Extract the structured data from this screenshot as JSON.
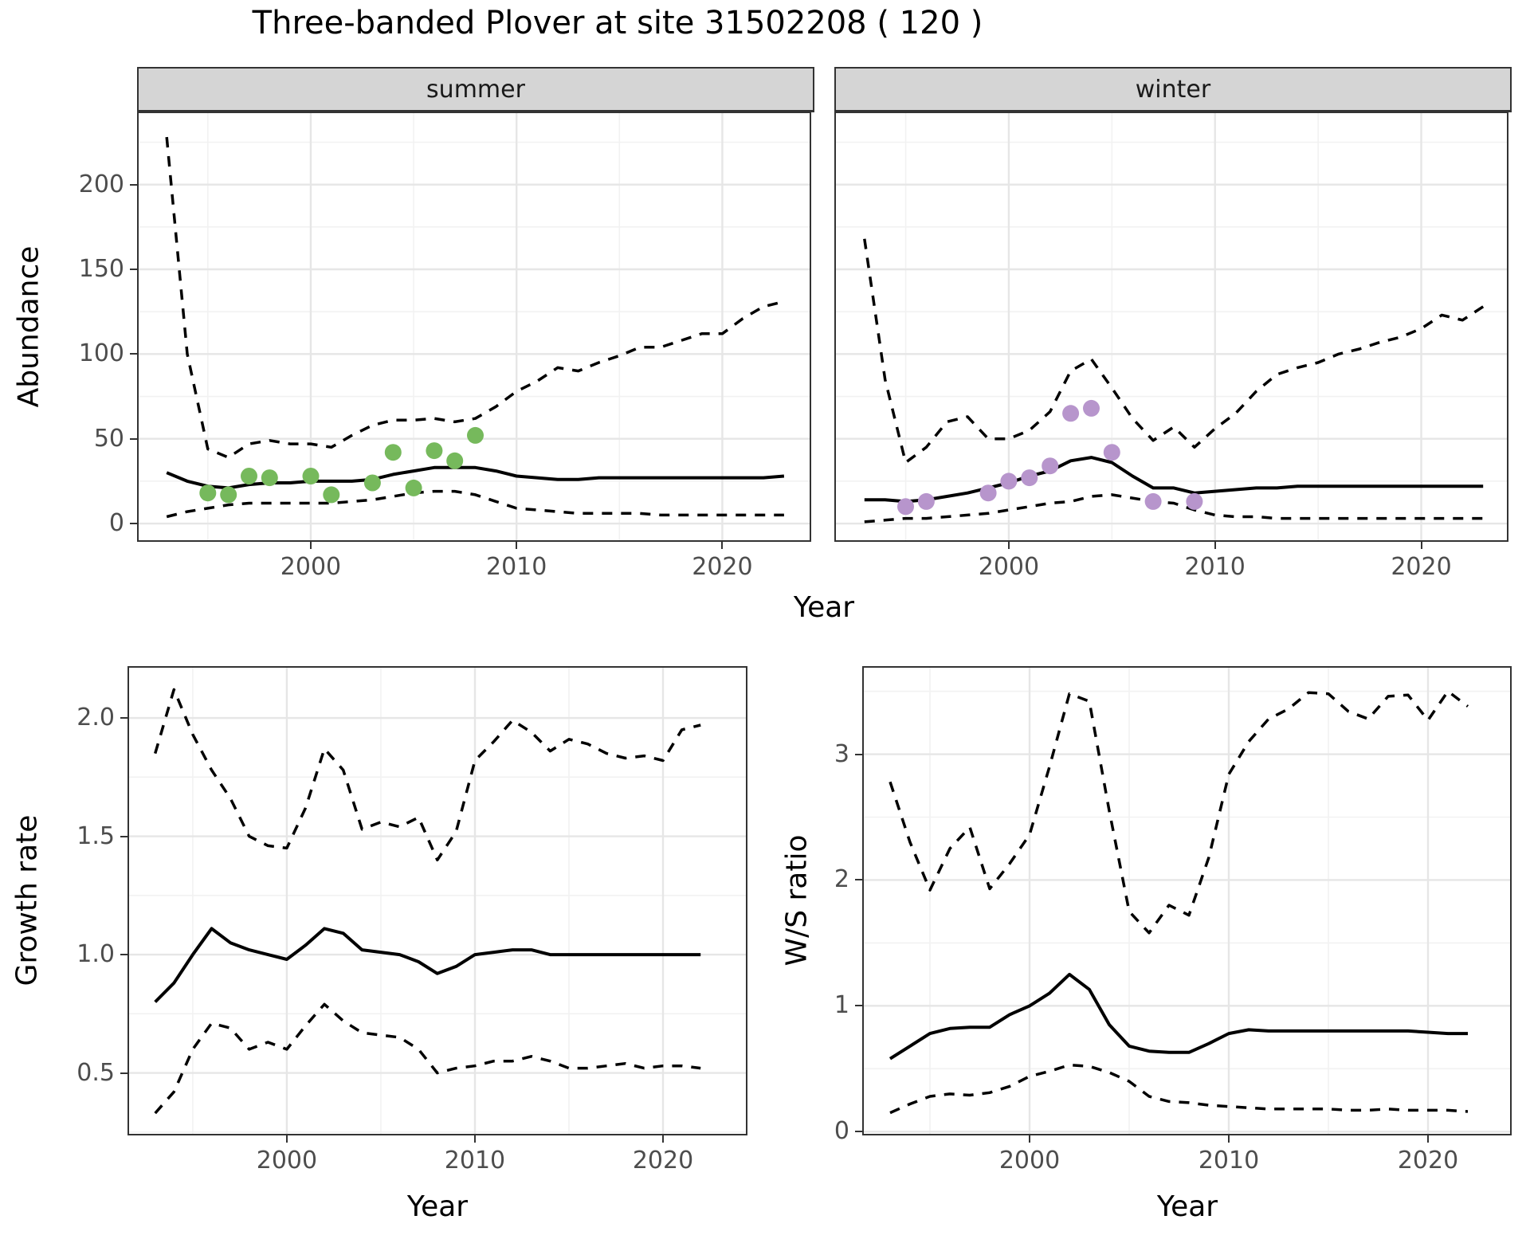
{
  "title": "Three-banded Plover at site 31502208 ( 120 )",
  "colors": {
    "summer_points": "#76b95c",
    "winter_points": "#b795cc",
    "line": "#000000",
    "grid_major": "#e6e6e6",
    "grid_minor": "#f2f2f2",
    "strip_fill": "#d5d5d5",
    "panel_border": "#333333",
    "tick_label": "#4d4d4d"
  },
  "facets": {
    "summer": "summer",
    "winter": "winter"
  },
  "axis_titles": {
    "abundance": "Abundance",
    "year_top": "Year",
    "growth": "Growth rate",
    "ws": "W/S ratio",
    "year_bottom_left": "Year",
    "year_bottom_right": "Year"
  },
  "chart_data": [
    {
      "id": "abundance-summer",
      "type": "line",
      "facet": "summer",
      "xlabel": "Year",
      "ylabel": "Abundance",
      "xlim": [
        1991.56,
        2024.32
      ],
      "ylim": [
        -10.8,
        243.1
      ],
      "x_ticks": {
        "values": [
          2000,
          2010,
          2020
        ],
        "labels": [
          "2000",
          "2010",
          "2020"
        ]
      },
      "y_ticks": {
        "values": [
          0,
          50,
          100,
          150,
          200
        ],
        "labels": [
          "0",
          "50",
          "100",
          "150",
          "200"
        ]
      },
      "x_minor": [
        1995,
        2005,
        2015
      ],
      "y_minor": [
        25,
        75,
        125,
        175,
        225
      ],
      "x": [
        1993,
        1994,
        1995,
        1996,
        1997,
        1998,
        1999,
        2000,
        2001,
        2002,
        2003,
        2004,
        2005,
        2006,
        2007,
        2008,
        2009,
        2010,
        2011,
        2012,
        2013,
        2014,
        2015,
        2016,
        2017,
        2018,
        2019,
        2020,
        2021,
        2022,
        2023
      ],
      "series": [
        {
          "name": "upper-95ci",
          "style": "dashed",
          "values": [
            228,
            100,
            44,
            39,
            47,
            49,
            47,
            47,
            45,
            52,
            58,
            61,
            61,
            62,
            60,
            62,
            69,
            78,
            84,
            92,
            90,
            95,
            99,
            104,
            104,
            108,
            112,
            112,
            121,
            128,
            131
          ]
        },
        {
          "name": "estimate",
          "style": "solid",
          "values": [
            30,
            25,
            22,
            21,
            23,
            24,
            24,
            25,
            25,
            25,
            26,
            29,
            31,
            33,
            33,
            33,
            31,
            28,
            27,
            26,
            26,
            27,
            27,
            27,
            27,
            27,
            27,
            27,
            27,
            27,
            28
          ]
        },
        {
          "name": "lower-95ci",
          "style": "dashed",
          "values": [
            4,
            7,
            9,
            11,
            12,
            12,
            12,
            12,
            12,
            13,
            14,
            16,
            18,
            19,
            19,
            17,
            13,
            9,
            8,
            7,
            6,
            6,
            6,
            6,
            5,
            5,
            5,
            5,
            5,
            5,
            5
          ]
        }
      ],
      "points": {
        "name": "summer-observations",
        "color_key": "summer_points",
        "data": [
          [
            1995,
            18
          ],
          [
            1996,
            17
          ],
          [
            1997,
            28
          ],
          [
            1998,
            27
          ],
          [
            2000,
            28
          ],
          [
            2001,
            17
          ],
          [
            2003,
            24
          ],
          [
            2004,
            42
          ],
          [
            2005,
            21
          ],
          [
            2006,
            43
          ],
          [
            2007,
            37
          ],
          [
            2008,
            52
          ]
        ]
      }
    },
    {
      "id": "abundance-winter",
      "type": "line",
      "facet": "winter",
      "xlabel": "Year",
      "ylabel": "Abundance",
      "xlim": [
        1991.54,
        2024.23
      ],
      "ylim": [
        -10.8,
        243.1
      ],
      "x_ticks": {
        "values": [
          2000,
          2010,
          2020
        ],
        "labels": [
          "2000",
          "2010",
          "2020"
        ]
      },
      "y_ticks": {
        "values": [
          0,
          50,
          100,
          150,
          200
        ],
        "labels": [
          "0",
          "50",
          "100",
          "150",
          "200"
        ]
      },
      "x_minor": [
        1995,
        2005,
        2015
      ],
      "y_minor": [
        25,
        75,
        125,
        175,
        225
      ],
      "x": [
        1993,
        1994,
        1995,
        1996,
        1997,
        1998,
        1999,
        2000,
        2001,
        2002,
        2003,
        2004,
        2005,
        2006,
        2007,
        2008,
        2009,
        2010,
        2011,
        2012,
        2013,
        2014,
        2015,
        2016,
        2017,
        2018,
        2019,
        2020,
        2021,
        2022,
        2023
      ],
      "series": [
        {
          "name": "upper-95ci",
          "style": "dashed",
          "values": [
            168,
            85,
            36,
            45,
            60,
            63,
            50,
            50,
            55,
            66,
            90,
            97,
            80,
            62,
            49,
            57,
            45,
            56,
            65,
            78,
            88,
            92,
            95,
            100,
            103,
            107,
            110,
            115,
            123,
            120,
            128
          ]
        },
        {
          "name": "estimate",
          "style": "solid",
          "values": [
            14,
            14,
            13,
            14,
            16,
            18,
            21,
            24,
            28,
            31,
            37,
            39,
            36,
            28,
            21,
            21,
            18,
            19,
            20,
            21,
            21,
            22,
            22,
            22,
            22,
            22,
            22,
            22,
            22,
            22,
            22
          ]
        },
        {
          "name": "lower-95ci",
          "style": "dashed",
          "values": [
            1,
            2,
            3,
            3,
            4,
            5,
            6,
            8,
            10,
            12,
            13,
            16,
            17,
            15,
            13,
            12,
            8,
            5,
            4,
            4,
            3,
            3,
            3,
            3,
            3,
            3,
            3,
            3,
            3,
            3,
            3
          ]
        }
      ],
      "points": {
        "name": "winter-observations",
        "color_key": "winter_points",
        "data": [
          [
            1995,
            10
          ],
          [
            1996,
            13
          ],
          [
            1999,
            18
          ],
          [
            2000,
            25
          ],
          [
            2001,
            27
          ],
          [
            2002,
            34
          ],
          [
            2003,
            65
          ],
          [
            2004,
            68
          ],
          [
            2005,
            42
          ],
          [
            2007,
            13
          ],
          [
            2009,
            13
          ]
        ]
      }
    },
    {
      "id": "growth-rate",
      "type": "line",
      "xlabel": "Year",
      "ylabel": "Growth rate",
      "xlim": [
        1991.53,
        2024.49
      ],
      "ylim": [
        0.236,
        2.219
      ],
      "x_ticks": {
        "values": [
          2000,
          2010,
          2020
        ],
        "labels": [
          "2000",
          "2010",
          "2020"
        ]
      },
      "y_ticks": {
        "values": [
          0.5,
          1.0,
          1.5,
          2.0
        ],
        "labels": [
          "0.5",
          "1.0",
          "1.5",
          "2.0"
        ]
      },
      "x_minor": [
        1995,
        2005,
        2015
      ],
      "y_minor": [
        0.25,
        0.75,
        1.25,
        1.75
      ],
      "x": [
        1993,
        1994,
        1995,
        1996,
        1997,
        1998,
        1999,
        2000,
        2001,
        2002,
        2003,
        2004,
        2005,
        2006,
        2007,
        2008,
        2009,
        2010,
        2011,
        2012,
        2013,
        2014,
        2015,
        2016,
        2017,
        2018,
        2019,
        2020,
        2021,
        2022
      ],
      "series": [
        {
          "name": "upper-95ci",
          "style": "dashed",
          "values": [
            1.85,
            2.12,
            1.93,
            1.78,
            1.66,
            1.5,
            1.46,
            1.45,
            1.62,
            1.87,
            1.78,
            1.53,
            1.56,
            1.54,
            1.58,
            1.4,
            1.52,
            1.82,
            1.9,
            1.99,
            1.94,
            1.86,
            1.91,
            1.89,
            1.85,
            1.83,
            1.84,
            1.82,
            1.95,
            1.97
          ]
        },
        {
          "name": "estimate",
          "style": "solid",
          "values": [
            0.8,
            0.88,
            1.0,
            1.11,
            1.05,
            1.02,
            1.0,
            0.98,
            1.04,
            1.11,
            1.09,
            1.02,
            1.01,
            1.0,
            0.97,
            0.92,
            0.95,
            1.0,
            1.01,
            1.02,
            1.02,
            1.0,
            1.0,
            1.0,
            1.0,
            1.0,
            1.0,
            1.0,
            1.0,
            1.0
          ]
        },
        {
          "name": "lower-95ci",
          "style": "dashed",
          "values": [
            0.33,
            0.42,
            0.6,
            0.71,
            0.69,
            0.6,
            0.63,
            0.6,
            0.7,
            0.79,
            0.72,
            0.67,
            0.66,
            0.65,
            0.6,
            0.5,
            0.52,
            0.53,
            0.55,
            0.55,
            0.57,
            0.55,
            0.52,
            0.52,
            0.53,
            0.54,
            0.52,
            0.53,
            0.53,
            0.52
          ]
        }
      ]
    },
    {
      "id": "ws-ratio",
      "type": "line",
      "xlabel": "Year",
      "ylabel": "W/S ratio",
      "xlim": [
        1991.6,
        2024.2
      ],
      "ylim": [
        -0.03,
        3.7
      ],
      "x_ticks": {
        "values": [
          2000,
          2010,
          2020
        ],
        "labels": [
          "2000",
          "2010",
          "2020"
        ]
      },
      "y_ticks": {
        "values": [
          0,
          1,
          2,
          3
        ],
        "labels": [
          "0",
          "1",
          "2",
          "3"
        ]
      },
      "x_minor": [
        1995,
        2005,
        2015
      ],
      "y_minor": [
        0.5,
        1.5,
        2.5,
        3.5
      ],
      "x": [
        1993,
        1994,
        1995,
        1996,
        1997,
        1998,
        1999,
        2000,
        2001,
        2002,
        2003,
        2004,
        2005,
        2006,
        2007,
        2008,
        2009,
        2010,
        2011,
        2012,
        2013,
        2014,
        2015,
        2016,
        2017,
        2018,
        2019,
        2020,
        2021,
        2022
      ],
      "series": [
        {
          "name": "upper-95ci",
          "style": "dashed",
          "values": [
            2.78,
            2.3,
            1.92,
            2.25,
            2.42,
            1.93,
            2.13,
            2.36,
            2.9,
            3.48,
            3.42,
            2.55,
            1.75,
            1.58,
            1.8,
            1.72,
            2.18,
            2.84,
            3.1,
            3.28,
            3.36,
            3.49,
            3.48,
            3.34,
            3.28,
            3.46,
            3.47,
            3.27,
            3.5,
            3.38
          ]
        },
        {
          "name": "estimate",
          "style": "solid",
          "values": [
            0.58,
            0.68,
            0.78,
            0.82,
            0.83,
            0.83,
            0.93,
            1.0,
            1.1,
            1.25,
            1.13,
            0.85,
            0.68,
            0.64,
            0.63,
            0.63,
            0.7,
            0.78,
            0.81,
            0.8,
            0.8,
            0.8,
            0.8,
            0.8,
            0.8,
            0.8,
            0.8,
            0.79,
            0.78,
            0.78
          ]
        },
        {
          "name": "lower-95ci",
          "style": "dashed",
          "values": [
            0.15,
            0.22,
            0.28,
            0.3,
            0.29,
            0.31,
            0.36,
            0.44,
            0.48,
            0.53,
            0.52,
            0.47,
            0.4,
            0.28,
            0.24,
            0.23,
            0.21,
            0.2,
            0.19,
            0.18,
            0.18,
            0.18,
            0.18,
            0.17,
            0.17,
            0.18,
            0.17,
            0.17,
            0.17,
            0.16
          ]
        }
      ]
    }
  ]
}
